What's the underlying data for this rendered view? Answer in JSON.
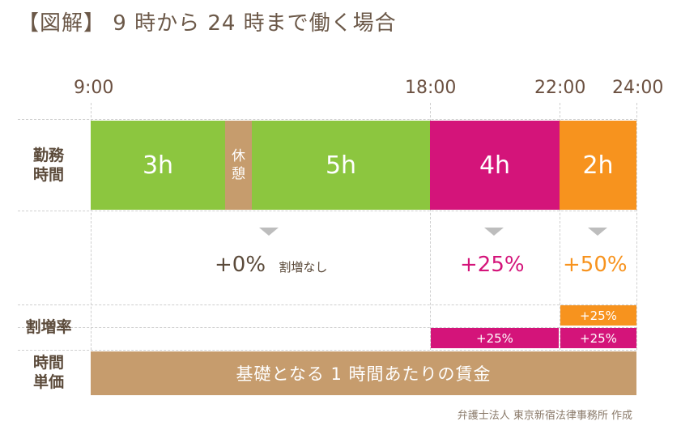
{
  "title": "【図解】 9 時から 24 時まで働く場合",
  "times": [
    "9:00",
    "18:00",
    "22:00",
    "24:00"
  ],
  "rows": {
    "work_hours": "勤務\n時間",
    "premium_rate": "割増率",
    "hourly_wage": "時間\n単価"
  },
  "blocks": {
    "first": "3h",
    "break": "休\n憩",
    "second": "5h",
    "night": "4h",
    "late": "2h"
  },
  "premium": {
    "regular_value": "+0%",
    "regular_note": "割増なし",
    "night_value": "+25%",
    "late_value": "+50%"
  },
  "rate_bars": {
    "night_lower": "+25%",
    "late_lower": "+25%",
    "late_upper": "+25%"
  },
  "wage_bar": "基礎となる 1 時間あたりの賃金",
  "credit": "弁護士法人 東京新宿法律事務所 作成",
  "colors": {
    "green": "#8cc63f",
    "brown": "#c69c6d",
    "magenta": "#d4147a",
    "orange": "#f7931e"
  }
}
